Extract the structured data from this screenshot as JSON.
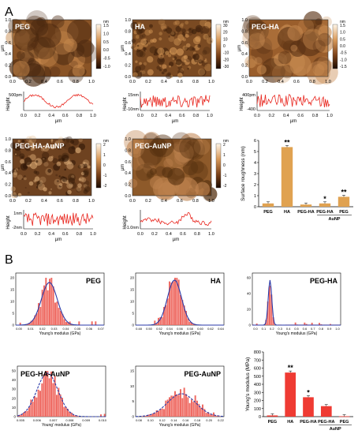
{
  "panel_letters": {
    "a": "A",
    "b": "B"
  },
  "afm": {
    "axis_label": "µm",
    "ticks": [
      "0.0",
      "0.2",
      "0.4",
      "0.6",
      "0.8",
      "1.0"
    ],
    "height_label": "Height",
    "colorbar_unit": "nm",
    "maps": [
      {
        "label": "PEG",
        "cbar": [
          "1.5",
          "1.0",
          "0.5",
          "0.0",
          "-0.5",
          "-1.0"
        ],
        "colors": {
          "base": "#8a5426",
          "light": "#c88a4e",
          "dark": "#4a2810"
        }
      },
      {
        "label": "HA",
        "cbar": [
          "30",
          "20",
          "10",
          "0",
          "-10",
          "-20",
          "-30"
        ],
        "colors": {
          "base": "#7a4a22",
          "light": "#d79a58",
          "dark": "#3b1e0a"
        }
      },
      {
        "label": "PEG-HA",
        "cbar": [
          "1.5",
          "1.0",
          "0.5",
          "0.0",
          "-0.5",
          "-1.0",
          "-1.5"
        ],
        "colors": {
          "base": "#9a5e2c",
          "light": "#c98c52",
          "dark": "#5a3214"
        }
      },
      {
        "label": "PEG-HA-AuNP",
        "cbar": [
          "2",
          "1",
          "0",
          "-1",
          "-2"
        ],
        "colors": {
          "base": "#6e4220",
          "light": "#e0b07a",
          "dark": "#2e1606"
        }
      },
      {
        "label": "PEG-AuNP",
        "cbar": [
          "2",
          "1",
          "0",
          "-1",
          "-2"
        ],
        "colors": {
          "base": "#8e5a2a",
          "light": "#c08450",
          "dark": "#55300f"
        }
      }
    ],
    "profiles": [
      {
        "ymax": "500pm",
        "ymin": "",
        "extra": ""
      },
      {
        "ymax": "15nm",
        "ymin": "-10nm",
        "extra": ""
      },
      {
        "ymax": "400pm",
        "ymin": "-400",
        "extra": ""
      },
      {
        "ymax": "1nm",
        "ymin": "-2nm",
        "extra": ""
      },
      {
        "ymax": "",
        "ymin": "-1.0nm",
        "extra": ""
      }
    ],
    "trace_color": "#e8241c"
  },
  "histograms": {
    "xlabel": "Young's modulus (GPa)",
    "xlabel_alt": "Young' modulus (GPa)",
    "panels": [
      {
        "label": "PEG",
        "ticks": [
          "0.00",
          "0.01",
          "0.02",
          "0.03",
          "0.04",
          "0.05",
          "0.06",
          "0.07"
        ],
        "yticks": [
          "0",
          "5",
          "10",
          "15",
          "20"
        ]
      },
      {
        "label": "HA",
        "ticks": [
          "0.48",
          "0.50",
          "0.52",
          "0.54",
          "0.56",
          "0.58",
          "0.60",
          "0.62",
          "0.64"
        ],
        "yticks": [
          "0",
          "5",
          "10",
          "15",
          "20"
        ]
      },
      {
        "label": "PEG-HA",
        "ticks": [
          "0.0",
          "0.1",
          "0.2",
          "0.3",
          "0.4",
          "0.5",
          "0.6",
          "0.7",
          "0.8",
          "0.9",
          "1.0"
        ],
        "yticks": [
          "0",
          "20",
          "40",
          "60"
        ]
      },
      {
        "label": "PEG-HA-AuNP",
        "ticks": [
          "0.005",
          "0.006",
          "0.007",
          "0.008",
          "0.009",
          "0.010"
        ],
        "yticks": [
          "0",
          "10",
          "20",
          "30",
          "40",
          "50"
        ]
      },
      {
        "label": "PEG-AuNP",
        "ticks": [
          "0.08",
          "0.10",
          "0.12",
          "0.14",
          "0.16",
          "0.18",
          "0.20",
          "0.22"
        ],
        "yticks": [
          "0",
          "5",
          "10",
          "15"
        ]
      }
    ],
    "bar_color": "#ef6a62",
    "fit_color": "#2a3aa8"
  },
  "chart_data": [
    {
      "type": "bar",
      "title": "",
      "xlabel": "",
      "ylabel": "Surface roughness (nm)",
      "categories": [
        "PEG",
        "HA",
        "PEG-HA",
        "PEG-HA",
        "PEG"
      ],
      "group_label": "AuNP",
      "values": [
        0.3,
        5.4,
        0.2,
        0.3,
        0.9
      ],
      "significance": [
        "",
        "**",
        "",
        "*",
        "**"
      ],
      "ylim": [
        0,
        6
      ],
      "yticks": [
        "0",
        "1",
        "2",
        "3",
        "4",
        "5",
        "6"
      ],
      "color": "#e0a251"
    },
    {
      "type": "bar",
      "title": "",
      "xlabel": "",
      "ylabel": "Young's modulus (MPa)",
      "categories": [
        "PEG",
        "HA",
        "PEG-HA",
        "PEG-HA",
        "PEG"
      ],
      "group_label": "AuNP",
      "values": [
        15,
        545,
        240,
        130,
        5
      ],
      "significance": [
        "",
        "**",
        "*",
        "",
        ""
      ],
      "ylim": [
        0,
        800
      ],
      "yticks": [
        "0",
        "100",
        "200",
        "300",
        "400",
        "500",
        "600",
        "700",
        "800"
      ],
      "color": "#ef3b33"
    }
  ]
}
